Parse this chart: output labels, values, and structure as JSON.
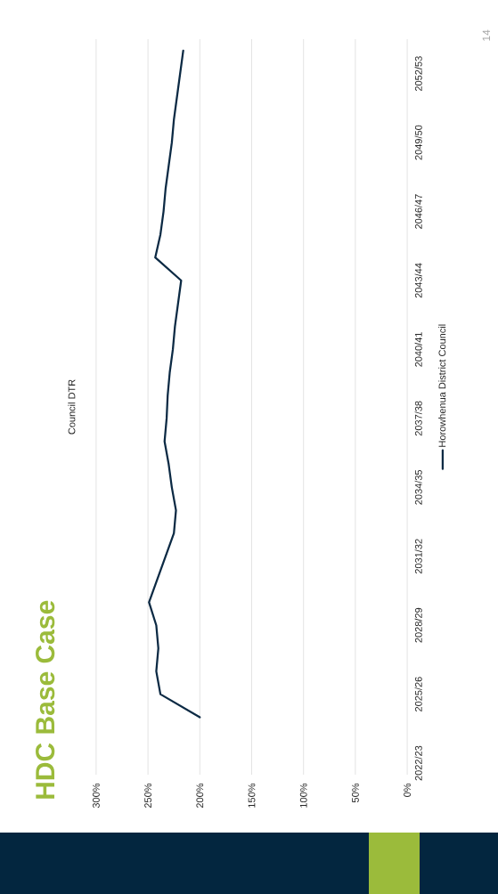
{
  "chart_data": {
    "type": "line",
    "orientation": "horizontal",
    "title": "HDC Base Case",
    "subtitle": "Council DTR",
    "categories": [
      null,
      "2052/53",
      null,
      null,
      "2049/50",
      null,
      null,
      "2046/47",
      null,
      null,
      "2043/44",
      null,
      null,
      "2040/41",
      null,
      null,
      "2037/38",
      null,
      null,
      "2034/35",
      null,
      null,
      "2031/32",
      null,
      null,
      "2028/29",
      null,
      null,
      "2025/26",
      null,
      null,
      "2022/23"
    ],
    "series": [
      {
        "name": "Horowhenua District Council",
        "color": "#0c2a44",
        "values": [
          216,
          219,
          222,
          225,
          227,
          230,
          233,
          235,
          238,
          243,
          218,
          221,
          224,
          226,
          229,
          231,
          232,
          234,
          230,
          227,
          223,
          225,
          233,
          241,
          249,
          242,
          240,
          242,
          238,
          200,
          null,
          null
        ]
      }
    ],
    "xlim": [
      300,
      0
    ],
    "xticks": [
      {
        "value": 300,
        "label": "300%"
      },
      {
        "value": 250,
        "label": "250%"
      },
      {
        "value": 200,
        "label": "200%"
      },
      {
        "value": 150,
        "label": "150%"
      },
      {
        "value": 100,
        "label": "100%"
      },
      {
        "value": 50,
        "label": "50%"
      },
      {
        "value": 0,
        "label": "0%"
      }
    ],
    "grid": "x",
    "legend": "right",
    "annotations": [
      "14"
    ]
  }
}
